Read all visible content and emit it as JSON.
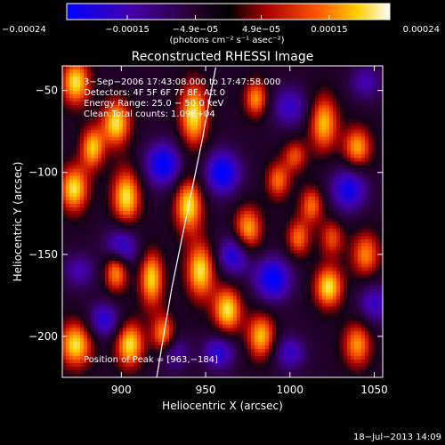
{
  "chart_data": {
    "type": "heatmap",
    "title": "Reconstructed RHESSI Image",
    "xlabel": "Heliocentric X (arcsec)",
    "ylabel": "Heliocentric Y (arcsec)",
    "xlim": [
      865,
      1055
    ],
    "ylim": [
      -225,
      -35
    ],
    "x_ticks": [
      {
        "value": 900,
        "label": "900"
      },
      {
        "value": 950,
        "label": "950"
      },
      {
        "value": 1000,
        "label": "1000"
      },
      {
        "value": 1050,
        "label": "1050"
      }
    ],
    "y_ticks": [
      {
        "value": -50,
        "label": "−50"
      },
      {
        "value": -100,
        "label": "−100"
      },
      {
        "value": -150,
        "label": "−150"
      },
      {
        "value": -200,
        "label": "−200"
      }
    ],
    "colorbar": {
      "range": [
        -0.00024,
        0.00024
      ],
      "ticks": [
        {
          "value": -0.00024,
          "label": "−0.00024"
        },
        {
          "value": -0.00015,
          "label": "−0.00015"
        },
        {
          "value": -4.9e-05,
          "label": "−4.9e−05"
        },
        {
          "value": 4.9e-05,
          "label": "4.9e−05"
        },
        {
          "value": 0.00015,
          "label": "0.00015"
        },
        {
          "value": 0.00024,
          "label": "0.00024"
        }
      ],
      "unit": "(photons cm⁻² s⁻¹ asec⁻²)"
    },
    "annotations": {
      "time": "3−Sep−2006 17:43:08.000 to 17:47:58.000",
      "detectors": "Detectors: 4F 5F 6F 7F 8F, Att 0",
      "energy": "Energy Range: 25.0 − 50.0 keV",
      "method": "Clean     Total counts: 1.09E+04",
      "peak": "Position of Peak = [963,−184]"
    },
    "limb": [
      [
        921,
        -225
      ],
      [
        925,
        -200
      ],
      [
        930,
        -170
      ],
      [
        936,
        -140
      ],
      [
        942,
        -110
      ],
      [
        948,
        -80
      ],
      [
        953,
        -52
      ],
      [
        956,
        -36
      ]
    ],
    "peak": [
      963,
      -184
    ],
    "blobs": [
      [
        873,
        -45,
        1.0,
        6,
        10
      ],
      [
        872,
        -110,
        1.0,
        6,
        10
      ],
      [
        873,
        -205,
        1.0,
        7,
        10
      ],
      [
        883,
        -85,
        0.9,
        5,
        9
      ],
      [
        897,
        -70,
        1.0,
        6,
        10
      ],
      [
        903,
        -115,
        1.0,
        6,
        12
      ],
      [
        897,
        -160,
        0.9,
        5,
        9
      ],
      [
        905,
        -205,
        1.0,
        6,
        10
      ],
      [
        918,
        -165,
        0.95,
        5,
        12
      ],
      [
        925,
        -200,
        0.9,
        5,
        9
      ],
      [
        943,
        -65,
        1.0,
        6,
        14
      ],
      [
        940,
        -120,
        1.0,
        6,
        12
      ],
      [
        947,
        -160,
        1.0,
        6,
        12
      ],
      [
        963,
        -184,
        1.0,
        6,
        10
      ],
      [
        975,
        -135,
        0.9,
        6,
        10
      ],
      [
        983,
        -200,
        0.9,
        6,
        10
      ],
      [
        980,
        -55,
        0.8,
        5,
        8
      ],
      [
        993,
        -105,
        0.7,
        5,
        8
      ],
      [
        1003,
        -90,
        0.6,
        5,
        7
      ],
      [
        1005,
        -140,
        0.7,
        5,
        8
      ],
      [
        1013,
        -120,
        0.7,
        5,
        8
      ],
      [
        1020,
        -70,
        0.9,
        6,
        12
      ],
      [
        1025,
        -140,
        0.6,
        5,
        8
      ],
      [
        1023,
        -170,
        1.0,
        6,
        9
      ],
      [
        1040,
        -85,
        0.85,
        6,
        9
      ],
      [
        1045,
        -150,
        0.75,
        6,
        10
      ],
      [
        1040,
        -205,
        0.8,
        6,
        10
      ],
      [
        900,
        -145,
        -0.8,
        7,
        9
      ],
      [
        890,
        -190,
        -0.7,
        7,
        8
      ],
      [
        925,
        -95,
        -0.9,
        8,
        10
      ],
      [
        930,
        -210,
        -0.6,
        7,
        8
      ],
      [
        960,
        -100,
        -0.9,
        8,
        10
      ],
      [
        967,
        -150,
        -0.8,
        7,
        9
      ],
      [
        958,
        -210,
        -0.7,
        7,
        8
      ],
      [
        990,
        -165,
        -0.9,
        8,
        10
      ],
      [
        1000,
        -60,
        -0.6,
        8,
        9
      ],
      [
        1000,
        -210,
        -0.6,
        7,
        8
      ],
      [
        1035,
        -110,
        -0.8,
        8,
        10
      ],
      [
        1050,
        -180,
        -0.6,
        7,
        9
      ],
      [
        1045,
        -45,
        -0.5,
        7,
        8
      ],
      [
        875,
        -160,
        -0.5,
        7,
        8
      ]
    ],
    "colors": {
      "background": "#000000",
      "negative_min": "#0000ff",
      "zero": "#000000",
      "positive_max": "#ffffff",
      "limb_line": "#ffffff"
    }
  },
  "footer": {
    "timestamp": "18−Jul−2013 14:09"
  }
}
